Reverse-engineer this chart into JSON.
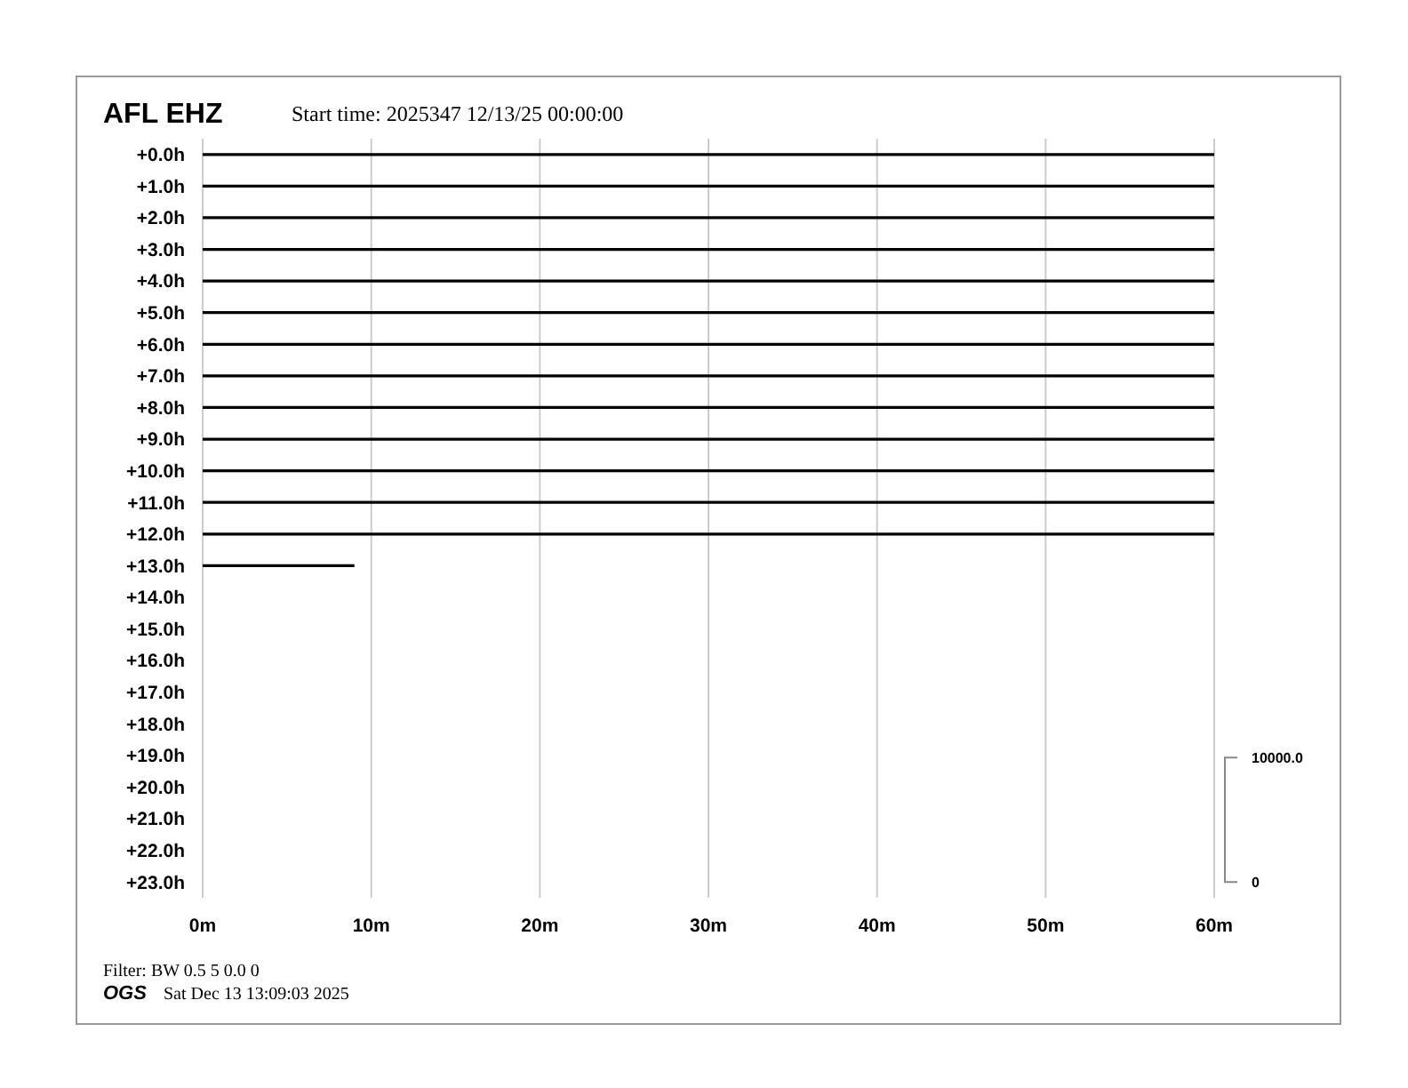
{
  "chart_data": {
    "type": "line",
    "title": "AFL EHZ",
    "subtitle": "Start time: 2025347 12/13/25 00:00:00",
    "annotations": [
      "10000.0",
      "0",
      "Filter: BW 0.5 5 0.0 0",
      "OGS",
      "Sat Dec 13 13:09:03 2025"
    ],
    "xlim": [
      0,
      60
    ],
    "xticks": [
      {
        "value": 0,
        "label": "0m"
      },
      {
        "value": 10,
        "label": "10m"
      },
      {
        "value": 20,
        "label": "20m"
      },
      {
        "value": 30,
        "label": "30m"
      },
      {
        "value": 40,
        "label": "40m"
      },
      {
        "value": 50,
        "label": "50m"
      },
      {
        "value": 60,
        "label": "60m"
      }
    ],
    "ylim": [
      23.5,
      -0.5
    ],
    "yticks": [
      {
        "value": 0,
        "label": "+0.0h"
      },
      {
        "value": 1,
        "label": "+1.0h"
      },
      {
        "value": 2,
        "label": "+2.0h"
      },
      {
        "value": 3,
        "label": "+3.0h"
      },
      {
        "value": 4,
        "label": "+4.0h"
      },
      {
        "value": 5,
        "label": "+5.0h"
      },
      {
        "value": 6,
        "label": "+6.0h"
      },
      {
        "value": 7,
        "label": "+7.0h"
      },
      {
        "value": 8,
        "label": "+8.0h"
      },
      {
        "value": 9,
        "label": "+9.0h"
      },
      {
        "value": 10,
        "label": "+10.0h"
      },
      {
        "value": 11,
        "label": "+11.0h"
      },
      {
        "value": 12,
        "label": "+12.0h"
      },
      {
        "value": 13,
        "label": "+13.0h"
      },
      {
        "value": 14,
        "label": "+14.0h"
      },
      {
        "value": 15,
        "label": "+15.0h"
      },
      {
        "value": 16,
        "label": "+16.0h"
      },
      {
        "value": 17,
        "label": "+17.0h"
      },
      {
        "value": 18,
        "label": "+18.0h"
      },
      {
        "value": 19,
        "label": "+19.0h"
      },
      {
        "value": 20,
        "label": "+20.0h"
      },
      {
        "value": 21,
        "label": "+21.0h"
      },
      {
        "value": 22,
        "label": "+22.0h"
      },
      {
        "value": 23,
        "label": "+23.0h"
      }
    ],
    "grid": "x",
    "marker": "none",
    "line_style": "solid",
    "series": [
      {
        "color": "#000000",
        "x": [
          0,
          60
        ],
        "values": [
          0,
          0
        ]
      },
      {
        "color": "#000000",
        "x": [
          0,
          60
        ],
        "values": [
          1,
          1
        ]
      },
      {
        "color": "#000000",
        "x": [
          0,
          60
        ],
        "values": [
          2,
          2
        ]
      },
      {
        "color": "#000000",
        "x": [
          0,
          60
        ],
        "values": [
          3,
          3
        ]
      },
      {
        "color": "#000000",
        "x": [
          0,
          60
        ],
        "values": [
          4,
          4
        ]
      },
      {
        "color": "#000000",
        "x": [
          0,
          60
        ],
        "values": [
          5,
          5
        ]
      },
      {
        "color": "#000000",
        "x": [
          0,
          60
        ],
        "values": [
          6,
          6
        ]
      },
      {
        "color": "#000000",
        "x": [
          0,
          60
        ],
        "values": [
          7,
          7
        ]
      },
      {
        "color": "#000000",
        "x": [
          0,
          60
        ],
        "values": [
          8,
          8
        ]
      },
      {
        "color": "#000000",
        "x": [
          0,
          60
        ],
        "values": [
          9,
          9
        ]
      },
      {
        "color": "#000000",
        "x": [
          0,
          60
        ],
        "values": [
          10,
          10
        ]
      },
      {
        "color": "#000000",
        "x": [
          0,
          60
        ],
        "values": [
          11,
          11
        ]
      },
      {
        "color": "#000000",
        "x": [
          0,
          60
        ],
        "values": [
          12,
          12
        ]
      },
      {
        "color": "#000000",
        "x": [
          0,
          9
        ],
        "values": [
          13,
          13
        ]
      }
    ]
  }
}
